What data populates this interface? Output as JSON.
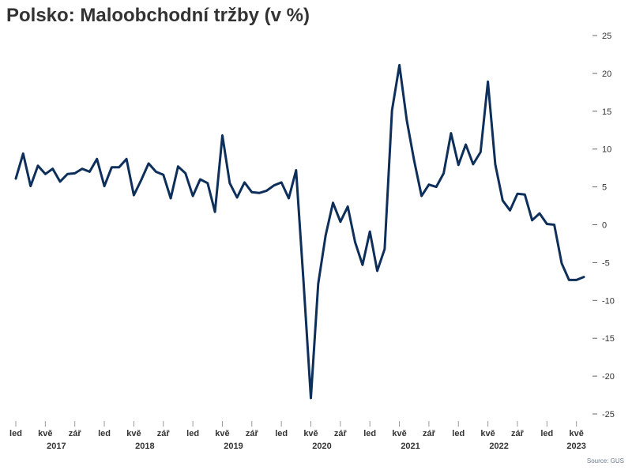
{
  "chart_data": {
    "type": "line",
    "title": "Polsko: Maloobchodní tržby (v %)",
    "source": "Source: GUS",
    "xlabel": "",
    "ylabel": "",
    "ylim": [
      -25,
      25
    ],
    "y_ticks": [
      25,
      20,
      15,
      10,
      5,
      0,
      -5,
      -10,
      -15,
      -20,
      -25
    ],
    "y_axis_position": "right",
    "grid": false,
    "line_color": "#0d2f5a",
    "x": [
      "2017-01",
      "2017-02",
      "2017-03",
      "2017-04",
      "2017-05",
      "2017-06",
      "2017-07",
      "2017-08",
      "2017-09",
      "2017-10",
      "2017-11",
      "2017-12",
      "2018-01",
      "2018-02",
      "2018-03",
      "2018-04",
      "2018-05",
      "2018-06",
      "2018-07",
      "2018-08",
      "2018-09",
      "2018-10",
      "2018-11",
      "2018-12",
      "2019-01",
      "2019-02",
      "2019-03",
      "2019-04",
      "2019-05",
      "2019-06",
      "2019-07",
      "2019-08",
      "2019-09",
      "2019-10",
      "2019-11",
      "2019-12",
      "2020-01",
      "2020-02",
      "2020-03",
      "2020-04",
      "2020-05",
      "2020-06",
      "2020-07",
      "2020-08",
      "2020-09",
      "2020-10",
      "2020-11",
      "2020-12",
      "2021-01",
      "2021-02",
      "2021-03",
      "2021-04",
      "2021-05",
      "2021-06",
      "2021-07",
      "2021-08",
      "2021-09",
      "2021-10",
      "2021-11",
      "2021-12",
      "2022-01",
      "2022-02",
      "2022-03",
      "2022-04",
      "2022-05",
      "2022-06",
      "2022-07",
      "2022-08",
      "2022-09",
      "2022-10",
      "2022-11",
      "2022-12",
      "2023-01",
      "2023-02",
      "2023-03",
      "2023-04",
      "2023-05",
      "2023-06"
    ],
    "series": [
      {
        "values": [
          6.1,
          9.4,
          5.1,
          7.8,
          6.7,
          7.4,
          5.7,
          6.7,
          6.8,
          7.4,
          7.0,
          8.7,
          5.1,
          7.6,
          7.6,
          8.7,
          3.9,
          5.9,
          8.1,
          7.0,
          6.6,
          3.5,
          7.7,
          6.8,
          3.8,
          6.0,
          5.5,
          1.7,
          11.8,
          5.5,
          3.6,
          5.6,
          4.3,
          4.2,
          4.5,
          5.2,
          5.6,
          3.5,
          7.2,
          -7.5,
          -22.9,
          -7.8,
          -1.4,
          2.9,
          0.4,
          2.4,
          -2.3,
          -5.3,
          -0.9,
          -6.1,
          -3.2,
          15.1,
          21.1,
          13.8,
          8.5,
          3.8,
          5.3,
          5.0,
          6.8,
          12.1,
          7.9,
          10.6,
          8.0,
          9.6,
          18.9,
          8.0,
          3.2,
          1.9,
          4.1,
          4.0,
          0.6,
          1.5,
          0.1,
          0.0,
          -5.1,
          -7.3,
          -7.3,
          -6.9
        ]
      }
    ],
    "x_tick_labels": [
      {
        "at": "2017-01",
        "label": "led"
      },
      {
        "at": "2017-05",
        "label": "kvě"
      },
      {
        "at": "2017-09",
        "label": "zář"
      },
      {
        "at": "2018-01",
        "label": "led"
      },
      {
        "at": "2018-05",
        "label": "kvě"
      },
      {
        "at": "2018-09",
        "label": "zář"
      },
      {
        "at": "2019-01",
        "label": "led"
      },
      {
        "at": "2019-05",
        "label": "kvě"
      },
      {
        "at": "2019-09",
        "label": "zář"
      },
      {
        "at": "2020-01",
        "label": "led"
      },
      {
        "at": "2020-05",
        "label": "kvě"
      },
      {
        "at": "2020-09",
        "label": "zář"
      },
      {
        "at": "2021-01",
        "label": "led"
      },
      {
        "at": "2021-05",
        "label": "kvě"
      },
      {
        "at": "2021-09",
        "label": "zář"
      },
      {
        "at": "2022-01",
        "label": "led"
      },
      {
        "at": "2022-05",
        "label": "kvě"
      },
      {
        "at": "2022-09",
        "label": "zář"
      },
      {
        "at": "2023-01",
        "label": "led"
      },
      {
        "at": "2023-05",
        "label": "kvě"
      }
    ],
    "year_labels": [
      "2017",
      "2018",
      "2019",
      "2020",
      "2021",
      "2022",
      "2023"
    ]
  }
}
